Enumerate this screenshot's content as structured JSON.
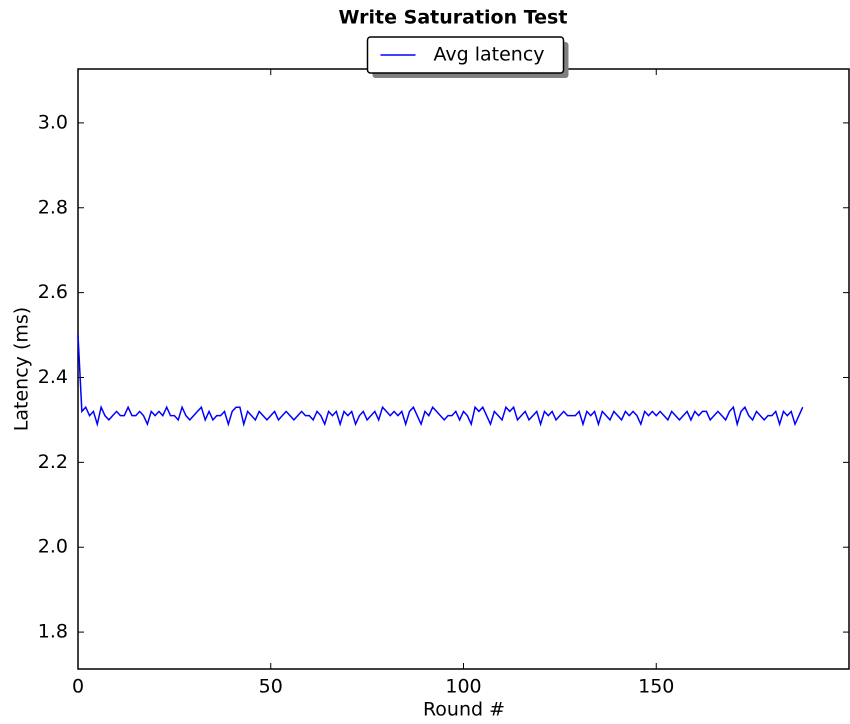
{
  "chart_data": {
    "type": "line",
    "title": "Write Saturation Test",
    "xlabel": "Round #",
    "ylabel": "Latency (ms)",
    "x": [
      0,
      1,
      2,
      3,
      4,
      5,
      6,
      7,
      8,
      9,
      10,
      11,
      12,
      13,
      14,
      15,
      16,
      17,
      18,
      19,
      20,
      21,
      22,
      23,
      24,
      25,
      26,
      27,
      28,
      29,
      30,
      31,
      32,
      33,
      34,
      35,
      36,
      37,
      38,
      39,
      40,
      41,
      42,
      43,
      44,
      45,
      46,
      47,
      48,
      49,
      50,
      51,
      52,
      53,
      54,
      55,
      56,
      57,
      58,
      59,
      60,
      61,
      62,
      63,
      64,
      65,
      66,
      67,
      68,
      69,
      70,
      71,
      72,
      73,
      74,
      75,
      76,
      77,
      78,
      79,
      80,
      81,
      82,
      83,
      84,
      85,
      86,
      87,
      88,
      89,
      90,
      91,
      92,
      93,
      94,
      95,
      96,
      97,
      98,
      99,
      100,
      101,
      102,
      103,
      104,
      105,
      106,
      107,
      108,
      109,
      110,
      111,
      112,
      113,
      114,
      115,
      116,
      117,
      118,
      119,
      120,
      121,
      122,
      123,
      124,
      125,
      126,
      127,
      128,
      129,
      130,
      131,
      132,
      133,
      134,
      135,
      136,
      137,
      138,
      139,
      140,
      141,
      142,
      143,
      144,
      145,
      146,
      147,
      148,
      149,
      150,
      151,
      152,
      153,
      154,
      155,
      156,
      157,
      158,
      159,
      160,
      161,
      162,
      163,
      164,
      165,
      166,
      167,
      168,
      169,
      170,
      171,
      172,
      173,
      174,
      175,
      176,
      177,
      178,
      179,
      180,
      181,
      182,
      183,
      184,
      185,
      186,
      187,
      188
    ],
    "series": [
      {
        "name": "Avg latency",
        "color": "#0000ff",
        "values": [
          2.5,
          2.32,
          2.33,
          2.31,
          2.32,
          2.29,
          2.33,
          2.31,
          2.3,
          2.31,
          2.32,
          2.31,
          2.31,
          2.33,
          2.31,
          2.31,
          2.32,
          2.31,
          2.29,
          2.32,
          2.31,
          2.32,
          2.31,
          2.33,
          2.31,
          2.31,
          2.3,
          2.33,
          2.31,
          2.3,
          2.31,
          2.32,
          2.33,
          2.3,
          2.32,
          2.3,
          2.31,
          2.31,
          2.32,
          2.29,
          2.32,
          2.33,
          2.33,
          2.29,
          2.32,
          2.31,
          2.3,
          2.32,
          2.31,
          2.3,
          2.31,
          2.32,
          2.3,
          2.31,
          2.32,
          2.31,
          2.3,
          2.31,
          2.32,
          2.31,
          2.31,
          2.3,
          2.32,
          2.31,
          2.29,
          2.32,
          2.31,
          2.32,
          2.29,
          2.32,
          2.31,
          2.32,
          2.29,
          2.31,
          2.32,
          2.3,
          2.31,
          2.32,
          2.3,
          2.33,
          2.32,
          2.31,
          2.32,
          2.31,
          2.32,
          2.29,
          2.32,
          2.33,
          2.31,
          2.29,
          2.32,
          2.31,
          2.33,
          2.32,
          2.31,
          2.3,
          2.31,
          2.31,
          2.32,
          2.3,
          2.32,
          2.31,
          2.29,
          2.33,
          2.32,
          2.33,
          2.31,
          2.29,
          2.32,
          2.31,
          2.3,
          2.33,
          2.32,
          2.33,
          2.3,
          2.31,
          2.32,
          2.3,
          2.31,
          2.32,
          2.29,
          2.32,
          2.31,
          2.32,
          2.3,
          2.31,
          2.32,
          2.31,
          2.31,
          2.31,
          2.32,
          2.29,
          2.32,
          2.31,
          2.32,
          2.29,
          2.32,
          2.31,
          2.3,
          2.32,
          2.31,
          2.3,
          2.32,
          2.31,
          2.32,
          2.31,
          2.29,
          2.32,
          2.31,
          2.32,
          2.31,
          2.32,
          2.31,
          2.3,
          2.32,
          2.31,
          2.3,
          2.31,
          2.32,
          2.3,
          2.32,
          2.31,
          2.32,
          2.32,
          2.3,
          2.31,
          2.32,
          2.31,
          2.3,
          2.32,
          2.33,
          2.29,
          2.32,
          2.33,
          2.31,
          2.3,
          2.32,
          2.31,
          2.3,
          2.31,
          2.31,
          2.32,
          2.29,
          2.32,
          2.31,
          2.32,
          2.29,
          2.31,
          2.33
        ]
      }
    ],
    "xlim": [
      0,
      200
    ],
    "xticks": [
      0,
      50,
      100,
      150
    ],
    "ylim": [
      1.713,
      3.127
    ],
    "yticks": [
      1.8,
      {
        "value": 2,
        "label": "2.0"
      },
      2.2,
      2.4,
      2.6,
      2.8,
      {
        "value": 3,
        "label": "3.0"
      }
    ],
    "grid": false,
    "legend": "upper center"
  }
}
